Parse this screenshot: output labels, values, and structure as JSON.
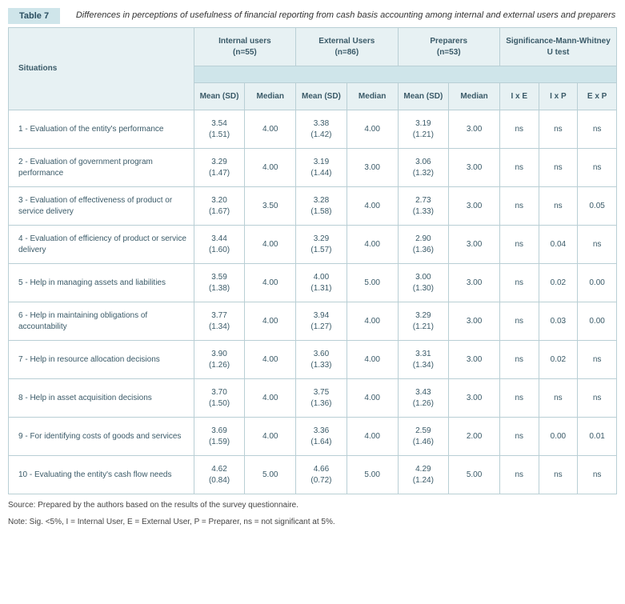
{
  "header": {
    "label": "Table 7",
    "caption": "Differences in perceptions of usefulness of financial reporting from cash basis accounting among internal and external users and preparers"
  },
  "columns": {
    "situations": "Situations",
    "groups": [
      {
        "title": "Internal users",
        "n": "(n=55)",
        "sub": [
          "Mean (SD)",
          "Median"
        ]
      },
      {
        "title": "External Users",
        "n": "(n=86)",
        "sub": [
          "Mean (SD)",
          "Median"
        ]
      },
      {
        "title": "Preparers",
        "n": "(n=53)",
        "sub": [
          "Mean (SD)",
          "Median"
        ]
      }
    ],
    "sig": {
      "title": "Significance-Mann-Whitney U test",
      "sub": [
        "I x E",
        "I x P",
        "E x P"
      ]
    }
  },
  "rows": [
    {
      "label": "1 - Evaluation of the entity's performance",
      "internal_mean": "3.54",
      "internal_sd": "(1.51)",
      "internal_median": "4.00",
      "external_mean": "3.38",
      "external_sd": "(1.42)",
      "external_median": "4.00",
      "prep_mean": "3.19",
      "prep_sd": "(1.21)",
      "prep_median": "3.00",
      "ixe": "ns",
      "ixp": "ns",
      "exp": "ns"
    },
    {
      "label": "2 - Evaluation of government program performance",
      "internal_mean": "3.29",
      "internal_sd": "(1.47)",
      "internal_median": "4.00",
      "external_mean": "3.19",
      "external_sd": "(1.44)",
      "external_median": "3.00",
      "prep_mean": "3.06",
      "prep_sd": "(1.32)",
      "prep_median": "3.00",
      "ixe": "ns",
      "ixp": "ns",
      "exp": "ns"
    },
    {
      "label": "3 - Evaluation of effectiveness of product or service delivery",
      "internal_mean": "3.20",
      "internal_sd": "(1.67)",
      "internal_median": "3.50",
      "external_mean": "3.28",
      "external_sd": "(1.58)",
      "external_median": "4.00",
      "prep_mean": "2.73",
      "prep_sd": "(1.33)",
      "prep_median": "3.00",
      "ixe": "ns",
      "ixp": "ns",
      "exp": "0.05"
    },
    {
      "label": "4 - Evaluation of efficiency of product or service delivery",
      "internal_mean": "3.44",
      "internal_sd": "(1.60)",
      "internal_median": "4.00",
      "external_mean": "3.29",
      "external_sd": "(1.57)",
      "external_median": "4.00",
      "prep_mean": "2.90",
      "prep_sd": "(1.36)",
      "prep_median": "3.00",
      "ixe": "ns",
      "ixp": "0.04",
      "exp": "ns"
    },
    {
      "label": "5 - Help in managing assets and liabilities",
      "internal_mean": "3.59",
      "internal_sd": "(1.38)",
      "internal_median": "4.00",
      "external_mean": "4.00",
      "external_sd": "(1.31)",
      "external_median": "5.00",
      "prep_mean": "3.00",
      "prep_sd": "(1.30)",
      "prep_median": "3.00",
      "ixe": "ns",
      "ixp": "0.02",
      "exp": "0.00"
    },
    {
      "label": "6 - Help in maintaining obligations of accountability",
      "internal_mean": "3.77",
      "internal_sd": "(1.34)",
      "internal_median": "4.00",
      "external_mean": "3.94",
      "external_sd": "(1.27)",
      "external_median": "4.00",
      "prep_mean": "3.29",
      "prep_sd": "(1.21)",
      "prep_median": "3.00",
      "ixe": "ns",
      "ixp": "0.03",
      "exp": "0.00"
    },
    {
      "label": "7 - Help in resource allocation decisions",
      "internal_mean": "3.90",
      "internal_sd": "(1.26)",
      "internal_median": "4.00",
      "external_mean": "3.60",
      "external_sd": "(1.33)",
      "external_median": "4.00",
      "prep_mean": "3.31",
      "prep_sd": "(1.34)",
      "prep_median": "3.00",
      "ixe": "ns",
      "ixp": "0.02",
      "exp": "ns"
    },
    {
      "label": "8 - Help in asset acquisition decisions",
      "internal_mean": "3.70",
      "internal_sd": "(1.50)",
      "internal_median": "4.00",
      "external_mean": "3.75",
      "external_sd": "(1.36)",
      "external_median": "4.00",
      "prep_mean": "3.43",
      "prep_sd": "(1.26)",
      "prep_median": "3.00",
      "ixe": "ns",
      "ixp": "ns",
      "exp": "ns"
    },
    {
      "label": "9 - For identifying costs of goods and services",
      "internal_mean": "3.69",
      "internal_sd": "(1.59)",
      "internal_median": "4.00",
      "external_mean": "3.36",
      "external_sd": "(1.64)",
      "external_median": "4.00",
      "prep_mean": "2.59",
      "prep_sd": "(1.46)",
      "prep_median": "2.00",
      "ixe": "ns",
      "ixp": "0.00",
      "exp": "0.01"
    },
    {
      "label": "10 - Evaluating the entity's cash flow needs",
      "internal_mean": "4.62",
      "internal_sd": "(0.84)",
      "internal_median": "5.00",
      "external_mean": "4.66",
      "external_sd": "(0.72)",
      "external_median": "5.00",
      "prep_mean": "4.29",
      "prep_sd": "(1.24)",
      "prep_median": "5.00",
      "ixe": "ns",
      "ixp": "ns",
      "exp": "ns"
    }
  ],
  "footnotes": {
    "source": "Source: Prepared by the authors based on the results of the survey questionnaire.",
    "note": "Note: Sig. <5%, I = Internal User, E = External User, P = Preparer, ns = not significant at 5%."
  }
}
